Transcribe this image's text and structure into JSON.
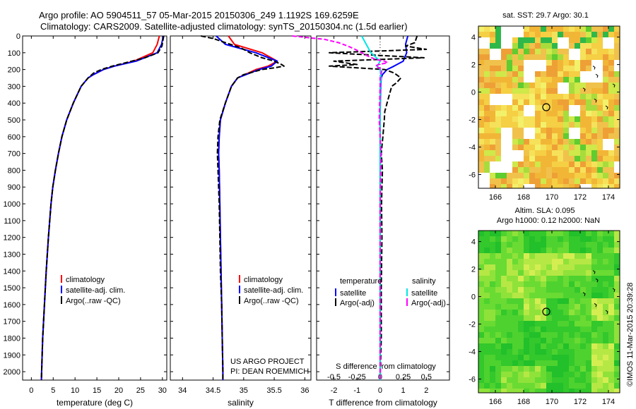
{
  "title": {
    "line1": "Argo profile: AO 5904511_57 05-Mar-2015 20150306_249 1.1192S 169.6259E",
    "line2": "Climatology: CARS2009. Satellite-adjusted climatology: synTS_20150304.nc (1.5d earlier)"
  },
  "credit": "©IMOS 11-Mar-2015 20:39:28",
  "colors": {
    "climatology": "#ff0000",
    "satellite": "#0000ff",
    "argo": "#000000",
    "sal_sat": "#00e5e5",
    "sal_argo": "#ff00ff"
  },
  "chart_data": [
    {
      "type": "line",
      "title": "",
      "xlabel": "temperature (deg C)",
      "ylabel": "",
      "xlim": [
        -2,
        31
      ],
      "ylim": [
        2050,
        0
      ],
      "xticks": [
        "0",
        "5",
        "10",
        "15",
        "20",
        "25",
        "30"
      ],
      "yticks": [
        "0",
        "100",
        "200",
        "300",
        "400",
        "500",
        "600",
        "700",
        "800",
        "900",
        "1000",
        "1100",
        "1200",
        "1300",
        "1400",
        "1500",
        "1600",
        "1700",
        "1800",
        "1900",
        "2000"
      ],
      "legend": [
        "climatology",
        "satellite-adj. clim.",
        "Argo(..raw -QC)"
      ],
      "series": [
        {
          "name": "climatology",
          "depth": [
            0,
            50,
            100,
            150,
            180,
            200,
            230,
            250,
            300,
            400,
            500,
            600,
            700,
            800,
            900,
            1000,
            1200,
            1400,
            1600,
            1800,
            2000,
            2050
          ],
          "values": [
            29.3,
            28.8,
            27.8,
            23.5,
            19,
            16.5,
            14.2,
            13,
            11.4,
            9.6,
            8.1,
            7,
            6.2,
            5.5,
            4.9,
            4.5,
            3.9,
            3.4,
            3,
            2.6,
            2.35,
            2.3
          ]
        },
        {
          "name": "satellite-adj. clim.",
          "depth": [
            0,
            50,
            100,
            150,
            180,
            200,
            230,
            250,
            300,
            400,
            500,
            600,
            700,
            800,
            900,
            1000,
            1200,
            1400,
            1600,
            1800,
            2000,
            2050
          ],
          "values": [
            30.2,
            29.8,
            28.8,
            24,
            19,
            16.5,
            14.2,
            13,
            11.4,
            9.6,
            8.1,
            7,
            6.2,
            5.5,
            4.9,
            4.5,
            3.9,
            3.4,
            3,
            2.6,
            2.35,
            2.3
          ]
        },
        {
          "name": "Argo(..raw -QC)",
          "depth": [
            0,
            30,
            60,
            100,
            130,
            160,
            180,
            200,
            220,
            250,
            300,
            400,
            500,
            600,
            700,
            800,
            900,
            1000,
            1200,
            1400,
            1600,
            1800,
            2000,
            2050
          ],
          "values": [
            30.3,
            30.1,
            29.9,
            29,
            26,
            21.5,
            18.5,
            16,
            14.3,
            13,
            11.4,
            9.6,
            8.1,
            7,
            6.2,
            5.5,
            4.9,
            4.5,
            3.9,
            3.4,
            3,
            2.6,
            2.35,
            2.3
          ]
        }
      ]
    },
    {
      "type": "line",
      "xlabel": "salinity",
      "xlim": [
        33.8,
        36.1
      ],
      "ylim": [
        2050,
        0
      ],
      "xticks": [
        "34",
        "34.5",
        "35",
        "35.5",
        "36"
      ],
      "legend": [
        "climatology",
        "satellite-adj. clim.",
        "Argo(..raw -QC)"
      ],
      "annotation": [
        "US ARGO PROJECT",
        "PI: DEAN ROEMMICH"
      ],
      "series": [
        {
          "name": "climatology",
          "depth": [
            0,
            50,
            100,
            150,
            180,
            200,
            250,
            300,
            400,
            500,
            600,
            700,
            800,
            1000,
            1200,
            1400,
            1600,
            1800,
            2000,
            2050
          ],
          "values": [
            34.75,
            34.85,
            35.3,
            35.55,
            35.4,
            35.2,
            34.9,
            34.8,
            34.7,
            34.62,
            34.6,
            34.59,
            34.6,
            34.61,
            34.62,
            34.63,
            34.64,
            34.65,
            34.66,
            34.66
          ]
        },
        {
          "name": "satellite-adj. clim.",
          "depth": [
            0,
            50,
            100,
            150,
            180,
            200,
            250,
            300,
            400,
            500,
            600,
            700,
            800,
            1000,
            1200,
            1400,
            1600,
            1800,
            2000,
            2050
          ],
          "values": [
            34.55,
            34.7,
            35.2,
            35.55,
            35.45,
            35.25,
            34.9,
            34.8,
            34.7,
            34.62,
            34.6,
            34.59,
            34.6,
            34.61,
            34.62,
            34.63,
            34.64,
            34.65,
            34.66,
            34.66
          ]
        },
        {
          "name": "Argo(..raw -QC)",
          "depth": [
            0,
            15,
            40,
            70,
            100,
            130,
            150,
            170,
            180,
            190,
            200,
            230,
            250,
            300,
            400,
            500,
            600,
            700,
            800,
            1000,
            1200,
            1400,
            1600,
            1800,
            2000,
            2050
          ],
          "values": [
            34.3,
            34.5,
            34.7,
            34.95,
            35.1,
            35.3,
            35.5,
            35.62,
            35.66,
            35.5,
            35.3,
            35.0,
            34.9,
            34.8,
            34.7,
            34.61,
            34.58,
            34.57,
            34.58,
            34.6,
            34.61,
            34.62,
            34.64,
            34.65,
            34.66,
            34.66
          ]
        }
      ]
    },
    {
      "type": "line",
      "xlabel": "T difference from climatology",
      "xlabel_top": "S difference from climatology",
      "xlim": [
        -2.75,
        3.0
      ],
      "ylim": [
        2050,
        0
      ],
      "xticks": [
        "-2",
        "-1",
        "0",
        "1",
        "2"
      ],
      "xticks_top": [
        "-0.5",
        "-0.25",
        "0",
        "0.25",
        "0.5"
      ],
      "legend_left_title": "temperature",
      "legend_right_title": "salinity",
      "legend": [
        "satellite",
        "Argo(-adj)",
        "satellite",
        "Argo(-adj)"
      ],
      "series": [
        {
          "name": "temperature satellite",
          "depth": [
            0,
            50,
            100,
            150,
            180,
            200,
            230,
            250,
            300,
            400,
            500,
            700,
            1000,
            1500,
            2050
          ],
          "values": [
            1.2,
            1.1,
            1.15,
            1.0,
            0.6,
            0.3,
            0.1,
            0.05,
            0.02,
            0.01,
            0,
            0,
            0,
            0,
            0
          ]
        },
        {
          "name": "temperature Argo(-adj)",
          "depth": [
            0,
            40,
            60,
            80,
            100,
            130,
            150,
            170,
            180,
            200,
            220,
            250,
            280,
            300,
            350,
            400,
            450,
            500,
            600,
            700,
            800,
            900,
            1000,
            1200,
            1500,
            1800,
            2050
          ],
          "values": [
            1.6,
            1.5,
            1.1,
            2.0,
            -2.2,
            1.9,
            -2.0,
            -1.0,
            -2.2,
            0.2,
            0.6,
            0.9,
            0.7,
            0.5,
            0.4,
            0.3,
            0.2,
            0.18,
            0.12,
            0.05,
            0.1,
            0.08,
            0.06,
            0.08,
            0.05,
            0.05,
            0.0
          ]
        },
        {
          "name": "salinity satellite",
          "depth": [
            0,
            50,
            100,
            150,
            180,
            200,
            250,
            300,
            500,
            800,
            1200,
            1600,
            2050
          ],
          "values": [
            -0.2,
            -0.15,
            -0.1,
            0,
            -0.03,
            0,
            0.01,
            0,
            0,
            0,
            0,
            0,
            0
          ]
        },
        {
          "name": "salinity Argo(-adj)",
          "depth": [
            0,
            20,
            40,
            60,
            80,
            100,
            120,
            140,
            150,
            160,
            170,
            180,
            200,
            230,
            250,
            300,
            500,
            700,
            1000,
            2050
          ],
          "values": [
            -0.95,
            -0.6,
            -0.45,
            -0.35,
            -0.27,
            -0.2,
            -0.13,
            -0.05,
            0.05,
            0.08,
            -0.02,
            -0.05,
            0.02,
            0.01,
            0,
            0,
            -0.01,
            0.01,
            0,
            0
          ]
        }
      ]
    },
    {
      "type": "heatmap",
      "title": "sat. SST: 29.7 Argo: 30.1",
      "xlim": [
        164.8,
        174.8
      ],
      "ylim": [
        -7,
        4.8
      ],
      "xticks": [
        "166",
        "168",
        "170",
        "172",
        "174"
      ],
      "yticks": [
        "4",
        "2",
        "0",
        "-2",
        "-4",
        "-6"
      ],
      "marker": {
        "lon": 169.6,
        "lat": -1.1
      }
    },
    {
      "type": "heatmap",
      "title": "Altim. SLA: 0.095",
      "subtitle": "Argo h1000: 0.12 h2000: NaN",
      "xlim": [
        164.8,
        174.8
      ],
      "ylim": [
        -7,
        4.8
      ],
      "xticks": [
        "166",
        "168",
        "170",
        "172",
        "174"
      ],
      "yticks": [
        "4",
        "2",
        "0",
        "-2",
        "-4",
        "-6"
      ],
      "marker": {
        "lon": 169.6,
        "lat": -1.1
      }
    }
  ]
}
